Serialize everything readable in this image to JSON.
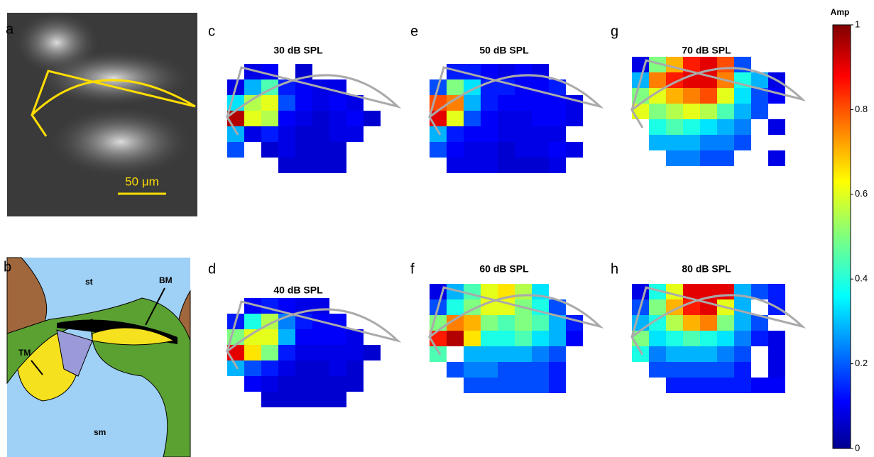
{
  "panel_a": {
    "letter": "a",
    "scale_label": "50 μm"
  },
  "panel_b": {
    "letter": "b",
    "labels": [
      "st",
      "BM",
      "TM",
      "sm"
    ]
  },
  "panels": [
    {
      "letter": "c",
      "title": "30 dB SPL",
      "amp": [
        [
          null,
          0.1,
          0.12,
          null,
          0.08,
          null,
          null,
          null,
          null
        ],
        [
          0.1,
          0.3,
          0.45,
          0.15,
          0.12,
          0.1,
          0.1,
          null,
          null
        ],
        [
          0.35,
          0.55,
          0.6,
          0.2,
          0.12,
          0.1,
          0.12,
          0.1,
          null
        ],
        [
          0.95,
          0.6,
          0.55,
          0.12,
          0.1,
          0.08,
          0.1,
          0.12,
          0.08
        ],
        [
          0.3,
          0.1,
          0.15,
          0.1,
          0.08,
          0.08,
          0.1,
          0.1,
          null
        ],
        [
          0.2,
          null,
          0.08,
          0.1,
          0.08,
          0.08,
          0.08,
          null,
          null
        ],
        [
          null,
          null,
          null,
          0.08,
          0.08,
          0.08,
          0.08,
          null,
          null
        ]
      ]
    },
    {
      "letter": "d",
      "title": "40 dB SPL",
      "amp": [
        [
          null,
          0.12,
          0.15,
          0.12,
          0.1,
          0.1,
          null,
          null,
          null
        ],
        [
          0.15,
          0.4,
          0.55,
          0.25,
          0.15,
          0.12,
          0.12,
          null,
          null
        ],
        [
          0.5,
          0.6,
          0.6,
          0.3,
          0.12,
          0.12,
          0.12,
          0.1,
          null
        ],
        [
          0.9,
          0.65,
          0.5,
          0.15,
          0.1,
          0.1,
          0.1,
          0.1,
          0.08
        ],
        [
          0.3,
          0.2,
          0.15,
          0.1,
          0.08,
          0.08,
          0.1,
          0.08,
          null
        ],
        [
          null,
          0.12,
          0.1,
          0.08,
          0.08,
          0.08,
          0.08,
          0.08,
          null
        ],
        [
          null,
          null,
          0.08,
          0.08,
          0.08,
          0.08,
          0.08,
          null,
          null
        ]
      ]
    },
    {
      "letter": "e",
      "title": "50 dB SPL",
      "amp": [
        [
          null,
          0.15,
          0.15,
          0.12,
          0.1,
          0.12,
          0.1,
          null,
          null
        ],
        [
          0.2,
          0.5,
          0.35,
          0.15,
          0.15,
          0.12,
          0.12,
          0.15,
          null
        ],
        [
          0.8,
          0.75,
          0.3,
          0.15,
          0.12,
          0.12,
          0.12,
          0.12,
          0.1
        ],
        [
          0.9,
          0.6,
          0.2,
          0.12,
          0.1,
          0.1,
          0.12,
          0.12,
          0.1
        ],
        [
          0.3,
          0.15,
          0.12,
          0.12,
          0.1,
          0.1,
          0.1,
          0.1,
          null
        ],
        [
          0.2,
          0.12,
          0.1,
          0.1,
          0.08,
          0.1,
          0.1,
          0.12,
          0.1
        ],
        [
          null,
          0.1,
          0.1,
          0.1,
          0.08,
          0.08,
          0.08,
          0.1,
          null
        ]
      ]
    },
    {
      "letter": "f",
      "title": "60 dB SPL",
      "amp": [
        [
          0.1,
          0.3,
          0.45,
          0.6,
          0.65,
          0.55,
          0.35,
          null,
          null
        ],
        [
          0.2,
          0.4,
          0.5,
          0.6,
          0.6,
          0.5,
          0.4,
          0.2,
          null
        ],
        [
          0.5,
          0.75,
          0.7,
          0.5,
          0.45,
          0.5,
          0.45,
          0.3,
          0.15
        ],
        [
          0.85,
          0.95,
          0.65,
          0.4,
          0.4,
          0.45,
          0.35,
          0.3,
          0.12
        ],
        [
          0.45,
          null,
          0.3,
          0.3,
          0.3,
          0.3,
          0.25,
          0.2,
          null
        ],
        [
          null,
          0.2,
          0.25,
          0.25,
          0.2,
          0.2,
          0.2,
          0.15,
          null
        ],
        [
          null,
          null,
          0.2,
          0.2,
          0.2,
          0.2,
          0.2,
          0.15,
          null
        ]
      ]
    },
    {
      "letter": "g",
      "title": "70 dB SPL",
      "amp": [
        [
          0.1,
          0.5,
          0.7,
          0.85,
          0.9,
          0.8,
          0.2,
          null,
          null
        ],
        [
          0.3,
          0.75,
          0.85,
          0.9,
          0.9,
          0.75,
          0.4,
          0.3,
          0.1
        ],
        [
          0.5,
          0.6,
          0.7,
          0.75,
          0.8,
          0.6,
          0.35,
          0.2,
          0.12
        ],
        [
          0.6,
          0.5,
          0.55,
          0.6,
          0.55,
          0.45,
          0.3,
          0.2,
          null
        ],
        [
          null,
          0.4,
          0.45,
          0.4,
          0.35,
          0.3,
          0.25,
          null,
          0.1
        ],
        [
          null,
          0.3,
          0.3,
          0.3,
          0.25,
          0.25,
          0.2,
          null,
          null
        ],
        [
          null,
          null,
          0.25,
          0.25,
          0.2,
          0.2,
          null,
          null,
          0.1
        ]
      ]
    },
    {
      "letter": "h",
      "title": "80 dB SPL",
      "amp": [
        [
          0.1,
          0.4,
          0.6,
          0.9,
          0.9,
          0.9,
          0.3,
          0.2,
          0.15
        ],
        [
          0.2,
          0.5,
          0.7,
          0.85,
          0.9,
          0.6,
          0.3,
          null,
          0.15
        ],
        [
          0.3,
          0.4,
          0.55,
          0.7,
          0.75,
          0.5,
          0.3,
          0.2,
          null
        ],
        [
          0.5,
          0.35,
          0.4,
          0.45,
          0.4,
          0.35,
          0.25,
          0.15,
          0.1
        ],
        [
          0.4,
          0.25,
          0.3,
          0.3,
          0.3,
          0.25,
          0.2,
          null,
          0.1
        ],
        [
          null,
          0.2,
          0.2,
          0.2,
          0.2,
          0.2,
          0.15,
          null,
          0.1
        ],
        [
          null,
          null,
          0.15,
          0.15,
          0.15,
          0.15,
          0.15,
          0.12,
          0.12
        ]
      ]
    }
  ],
  "colorbar": {
    "label": "Amp",
    "lim": [
      0,
      1
    ],
    "ticks": [
      0,
      0.2,
      0.4,
      0.6,
      0.8,
      1
    ]
  }
}
